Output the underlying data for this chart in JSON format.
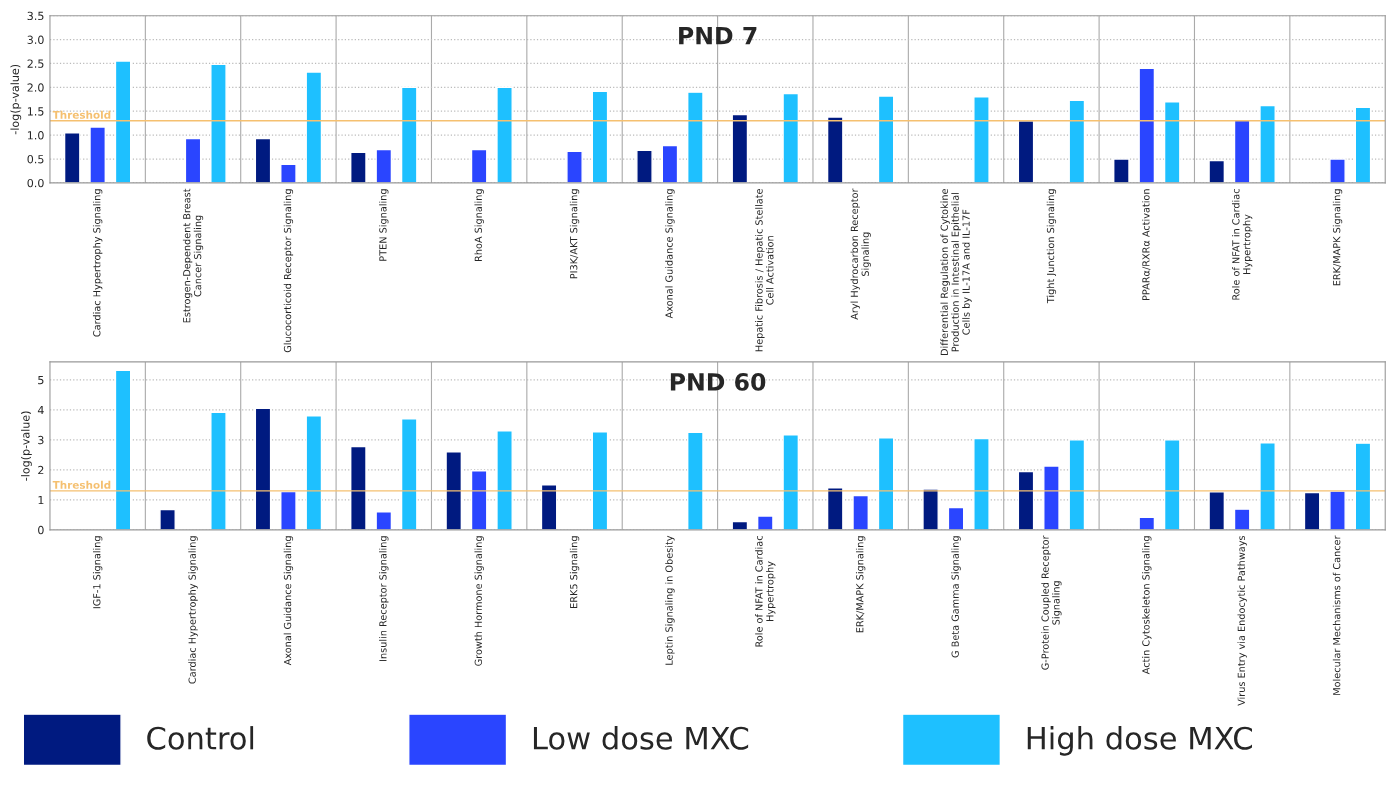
{
  "chart_data": [
    {
      "type": "bar",
      "title": "PND 7",
      "ylabel": "-log(p-value)",
      "categories": [
        "Cardiac Hypertrophy Signaling",
        "Estrogen-Dependent Breast\nCancer Signaling",
        "Glucocorticoid Receptor Signaling",
        "PTEN Signaling",
        "RhoA Signaling",
        "PI3K/AKT Signaling",
        "Axonal Guidance Signaling",
        "Hepatic Fibrosis / Hepatic Stellate\nCell Activation",
        "Aryl Hydrocarbon Receptor\nSignaling",
        "Differential Regulation of Cytokine\nProduction in Intestinal Epithelial\nCells by IL-17A and IL-17F",
        "Tight Junction Signaling",
        "PPARα/RXRα Activation",
        "Role of NFAT in Cardiac\nHypertrophy",
        "ERK/MAPK Signaling"
      ],
      "series": [
        {
          "name": "Control",
          "color": "#001a80",
          "values": [
            1.05,
            null,
            0.93,
            0.64,
            null,
            null,
            0.68,
            1.43,
            1.38,
            null,
            1.3,
            0.5,
            0.47,
            null
          ]
        },
        {
          "name": "Low dose MXC",
          "color": "#2a45ff",
          "values": [
            1.17,
            0.93,
            0.39,
            0.7,
            0.7,
            0.66,
            0.78,
            null,
            null,
            null,
            null,
            2.4,
            1.31,
            0.5
          ]
        },
        {
          "name": "High dose MXC",
          "color": "#1ec0ff",
          "values": [
            2.55,
            2.48,
            2.32,
            2.0,
            2.0,
            1.92,
            1.9,
            1.87,
            1.82,
            1.8,
            1.73,
            1.7,
            1.62,
            1.58
          ]
        }
      ],
      "ylim": [
        0,
        3.5
      ],
      "yticks": [
        {
          "value": 0,
          "label": "0.0"
        },
        {
          "value": 0.5,
          "label": "0.5"
        },
        {
          "value": 1,
          "label": "1.0"
        },
        {
          "value": 1.5,
          "label": "1.5"
        },
        {
          "value": 2,
          "label": "2.0"
        },
        {
          "value": 2.5,
          "label": "2.5"
        },
        {
          "value": 3,
          "label": "3.0"
        },
        {
          "value": 3.5,
          "label": "3.5"
        }
      ],
      "ref_lines": [
        {
          "axis": "y",
          "value": 1.3,
          "label": "Threshold",
          "color": "#f5c070"
        }
      ],
      "grid": true,
      "legend": "bottom"
    },
    {
      "type": "bar",
      "title": "PND 60",
      "ylabel": "-log(p-value)",
      "categories": [
        "IGF-1 Signaling",
        "Cardiac Hypertrophy Signaling",
        "Axonal Guidance Signaling",
        "Insulin Receptor Signaling",
        "Growth Hormone Signaling",
        "ERK5 Signaling",
        "Leptin Signaling in Obesity",
        "Role of NFAT in Cardiac\nHypertrophy",
        "ERK/MAPK Signaling",
        "G Beta Gamma Signaling",
        "G-Protein Coupled Receptor\nSignaling",
        "Actin Cytoskeleton Signaling",
        "Virus Entry via Endocytic Pathways",
        "Molecular Mechanisms of Cancer"
      ],
      "series": [
        {
          "name": "Control",
          "color": "#001a80",
          "values": [
            null,
            0.68,
            4.05,
            2.78,
            2.6,
            1.5,
            null,
            0.28,
            1.4,
            1.36,
            1.94,
            null,
            1.27,
            1.24
          ]
        },
        {
          "name": "Low dose MXC",
          "color": "#2a45ff",
          "values": [
            null,
            null,
            1.28,
            0.6,
            1.97,
            null,
            null,
            0.46,
            1.14,
            0.74,
            2.13,
            0.42,
            0.69,
            1.29
          ]
        },
        {
          "name": "High dose MXC",
          "color": "#1ec0ff",
          "values": [
            5.32,
            3.92,
            3.8,
            3.7,
            3.3,
            3.27,
            3.25,
            3.17,
            3.07,
            3.04,
            3.0,
            3.0,
            2.9,
            2.89
          ]
        }
      ],
      "ylim": [
        0,
        5.6
      ],
      "yticks": [
        0,
        1,
        2,
        3,
        4,
        5
      ],
      "ref_lines": [
        {
          "axis": "y",
          "value": 1.3,
          "label": "Threshold",
          "color": "#f5c070"
        }
      ],
      "grid": true,
      "legend": "bottom"
    }
  ]
}
